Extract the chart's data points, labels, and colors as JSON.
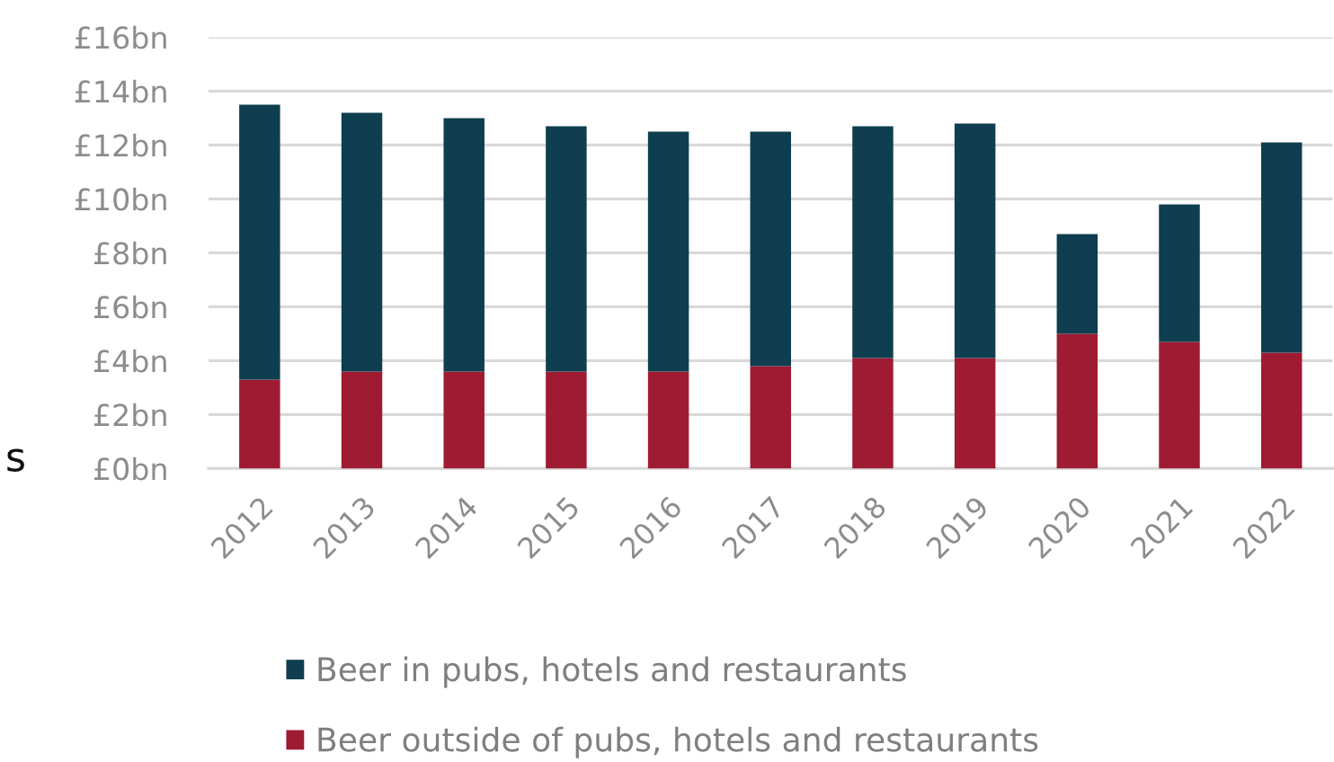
{
  "chart_data": {
    "type": "bar",
    "stacked": true,
    "categories": [
      "2012",
      "2013",
      "2014",
      "2015",
      "2016",
      "2017",
      "2018",
      "2019",
      "2020",
      "2021",
      "2022"
    ],
    "series": [
      {
        "name": "Beer outside of pubs, hotels and restaurants",
        "color": "#9e1b32",
        "values": [
          3.3,
          3.6,
          3.6,
          3.6,
          3.6,
          3.8,
          4.1,
          4.1,
          5.0,
          4.7,
          4.3
        ]
      },
      {
        "name": "Beer in pubs, hotels and restaurants",
        "color": "#0e3e4f",
        "values": [
          10.2,
          9.6,
          9.4,
          9.1,
          8.9,
          8.7,
          8.6,
          8.7,
          3.7,
          5.1,
          7.8
        ]
      }
    ],
    "ylim": [
      0,
      16
    ],
    "yticks": [
      {
        "value": 0,
        "label": "£0bn"
      },
      {
        "value": 2,
        "label": "£2bn"
      },
      {
        "value": 4,
        "label": "£4bn"
      },
      {
        "value": 6,
        "label": "£6bn"
      },
      {
        "value": 8,
        "label": "£8bn"
      },
      {
        "value": 10,
        "label": "£10bn"
      },
      {
        "value": 12,
        "label": "£12bn"
      },
      {
        "value": 14,
        "label": "£14bn"
      },
      {
        "value": 16,
        "label": "£16bn"
      }
    ],
    "grid": "y",
    "legend": "bottom",
    "annotations": [
      "s"
    ]
  }
}
